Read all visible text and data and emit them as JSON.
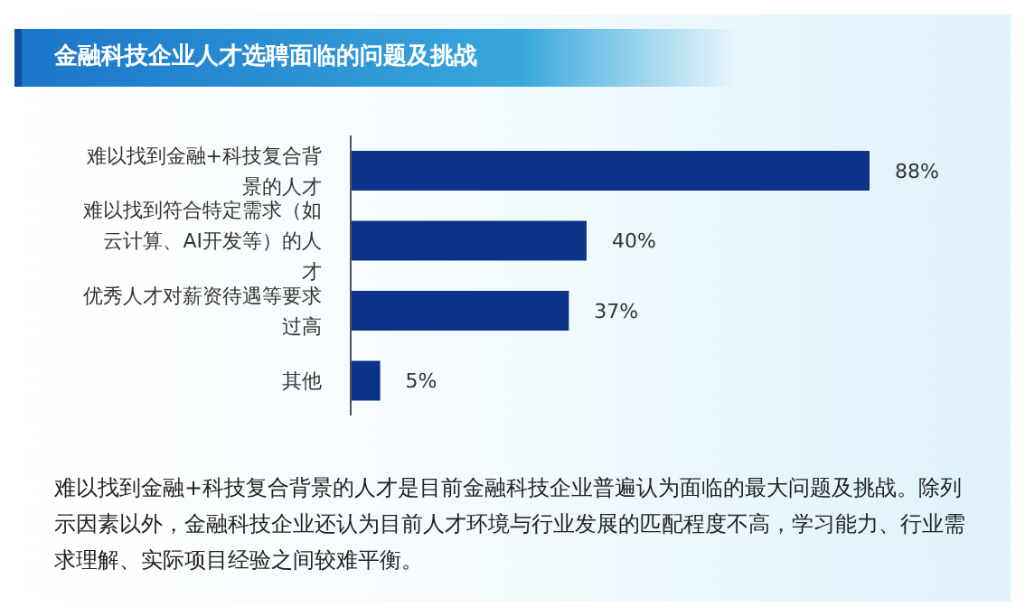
{
  "chart_data": {
    "type": "bar",
    "orientation": "horizontal",
    "relative": false,
    "title": "金融科技企业人才选聘面临的问题及挑战",
    "categories": [
      "难以找到金融+科技复合背景的人才",
      "难以找到符合特定需求（如云计算、AI开发等）的人才",
      "优秀人才对薪资待遇等要求过高",
      "其他"
    ],
    "values": [
      88,
      40,
      37,
      5
    ],
    "value_labels": [
      "88%",
      "40%",
      "37%",
      "5%"
    ],
    "color": "#0a3389",
    "annotations": [
      "难以找到金融+科技复合背景的人才是目前金融科技企业普遍认为面临的最大问题及挑战。除列示因素以外，金融科技企业还认为目前人才环境与行业发展的匹配程度不高，学习能力、行业需求理解、实际项目经验之间较难平衡。"
    ]
  }
}
